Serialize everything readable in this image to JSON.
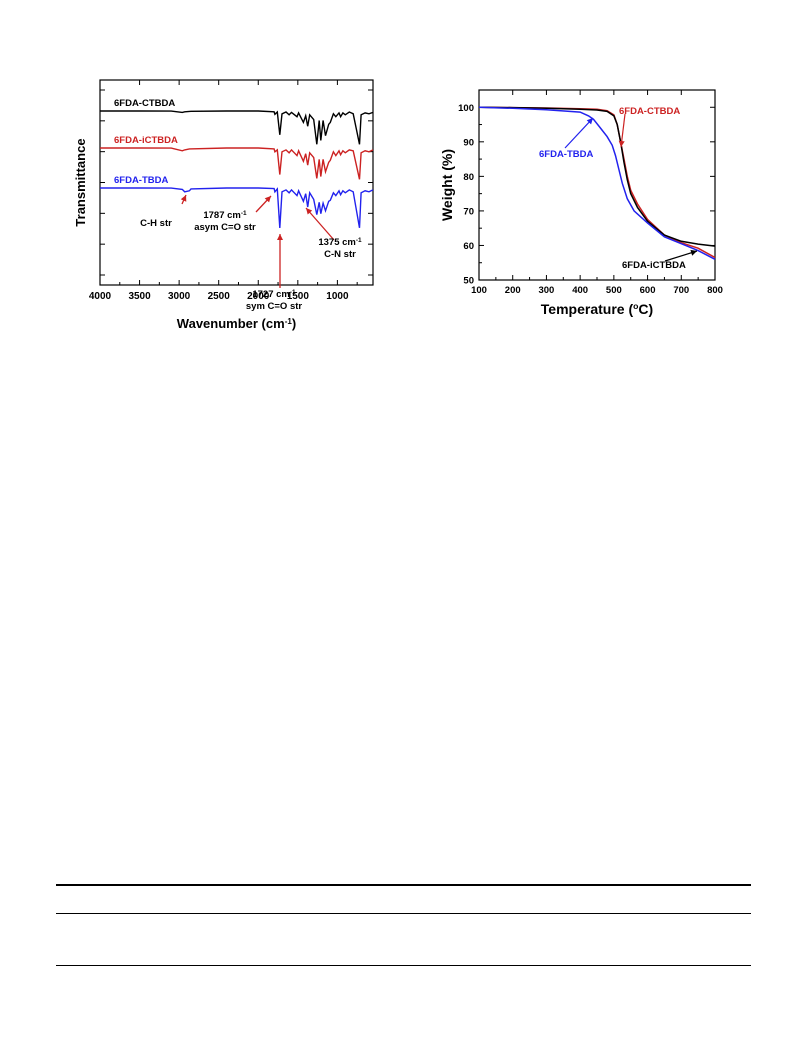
{
  "figures": [
    {
      "chart_data": {
        "type": "line",
        "xlabel": "Wavenumber (cm",
        "xlabel_sup": "-1",
        "xlabel_end": ")",
        "ylabel": "Transmittance",
        "xlim": [
          4000,
          550
        ],
        "x_reversed": true,
        "xticks": [
          4000,
          3500,
          3000,
          2500,
          2000,
          1500,
          1000
        ],
        "yticks_unlabeled": 7,
        "series": [
          {
            "name": "6FDA-CTBDA",
            "color": "#000000",
            "points": [
              [
                4000,
                0.0
              ],
              [
                3500,
                0.0
              ],
              [
                3100,
                0.1
              ],
              [
                2960,
                1.5
              ],
              [
                2930,
                0.8
              ],
              [
                2850,
                0.3
              ],
              [
                2400,
                0.0
              ],
              [
                2000,
                0.0
              ],
              [
                1800,
                0.8
              ],
              [
                1790,
                3.5
              ],
              [
                1760,
                1.0
              ],
              [
                1728,
                25
              ],
              [
                1700,
                3.0
              ],
              [
                1650,
                1.0
              ],
              [
                1610,
                4
              ],
              [
                1580,
                1.5
              ],
              [
                1510,
                6
              ],
              [
                1490,
                2
              ],
              [
                1430,
                12
              ],
              [
                1400,
                5
              ],
              [
                1375,
                16
              ],
              [
                1350,
                4
              ],
              [
                1300,
                9
              ],
              [
                1260,
                35
              ],
              [
                1230,
                10
              ],
              [
                1210,
                31
              ],
              [
                1180,
                10
              ],
              [
                1150,
                26
              ],
              [
                1110,
                14
              ],
              [
                1090,
                12
              ],
              [
                1050,
                3
              ],
              [
                1020,
                6
              ],
              [
                980,
                2
              ],
              [
                960,
                6
              ],
              [
                930,
                2
              ],
              [
                900,
                4
              ],
              [
                850,
                1
              ],
              [
                800,
                3
              ],
              [
                720,
                35
              ],
              [
                700,
                4
              ],
              [
                650,
                2
              ],
              [
                600,
                3
              ],
              [
                550,
                1.5
              ]
            ]
          },
          {
            "name": "6FDA-iCTBDA",
            "color": "#cc2222",
            "points": [
              [
                4000,
                0.0
              ],
              [
                3500,
                0.0
              ],
              [
                3100,
                0.1
              ],
              [
                2960,
                3
              ],
              [
                2930,
                2
              ],
              [
                2870,
                1
              ],
              [
                2400,
                0.0
              ],
              [
                2000,
                0.0
              ],
              [
                1800,
                1
              ],
              [
                1790,
                4
              ],
              [
                1760,
                2
              ],
              [
                1728,
                28
              ],
              [
                1700,
                4
              ],
              [
                1650,
                2
              ],
              [
                1610,
                5
              ],
              [
                1580,
                2
              ],
              [
                1510,
                8
              ],
              [
                1490,
                3
              ],
              [
                1430,
                14
              ],
              [
                1400,
                6
              ],
              [
                1375,
                18
              ],
              [
                1350,
                5
              ],
              [
                1300,
                10
              ],
              [
                1260,
                32
              ],
              [
                1230,
                12
              ],
              [
                1210,
                30
              ],
              [
                1180,
                12
              ],
              [
                1150,
                25
              ],
              [
                1110,
                15
              ],
              [
                1090,
                13
              ],
              [
                1050,
                4
              ],
              [
                1020,
                8
              ],
              [
                980,
                3
              ],
              [
                960,
                7
              ],
              [
                930,
                3
              ],
              [
                900,
                5
              ],
              [
                850,
                2
              ],
              [
                800,
                3
              ],
              [
                720,
                33
              ],
              [
                700,
                5
              ],
              [
                650,
                3
              ],
              [
                600,
                4
              ],
              [
                550,
                2
              ]
            ]
          },
          {
            "name": "6FDA-TBDA",
            "color": "#2222ee",
            "points": [
              [
                4000,
                0.0
              ],
              [
                3500,
                0.0
              ],
              [
                3100,
                0.1
              ],
              [
                2960,
                1.5
              ],
              [
                2930,
                4
              ],
              [
                2870,
                3
              ],
              [
                2850,
                1
              ],
              [
                2400,
                0.0
              ],
              [
                2000,
                0.0
              ],
              [
                1800,
                0.5
              ],
              [
                1790,
                4
              ],
              [
                1760,
                1
              ],
              [
                1728,
                42
              ],
              [
                1700,
                4
              ],
              [
                1650,
                2
              ],
              [
                1610,
                5
              ],
              [
                1580,
                2
              ],
              [
                1510,
                8
              ],
              [
                1490,
                3
              ],
              [
                1430,
                14
              ],
              [
                1400,
                6
              ],
              [
                1375,
                20
              ],
              [
                1350,
                5
              ],
              [
                1300,
                12
              ],
              [
                1260,
                28
              ],
              [
                1230,
                15
              ],
              [
                1210,
                27
              ],
              [
                1180,
                16
              ],
              [
                1150,
                24
              ],
              [
                1110,
                14
              ],
              [
                1090,
                13
              ],
              [
                1050,
                5
              ],
              [
                1020,
                8
              ],
              [
                980,
                3
              ],
              [
                960,
                7
              ],
              [
                930,
                3
              ],
              [
                900,
                5
              ],
              [
                850,
                2
              ],
              [
                800,
                4
              ],
              [
                720,
                42
              ],
              [
                700,
                5
              ],
              [
                650,
                3
              ],
              [
                600,
                4
              ],
              [
                550,
                2
              ]
            ]
          }
        ],
        "annotations": [
          {
            "line1": "C-H str",
            "line1_sup": "",
            "line2": "",
            "target": 2930
          },
          {
            "line1": "1787 cm",
            "line1_sup": "-1",
            "line2": "asym C=O str",
            "target": 1787
          },
          {
            "line1": "1727 cm",
            "line1_sup": "-1",
            "line2": "sym C=O str",
            "target": 1727
          },
          {
            "line1": "1375 cm",
            "line1_sup": "-1",
            "line2": "C-N str",
            "target": 1375
          }
        ]
      }
    },
    {
      "chart_data": {
        "type": "line",
        "xlabel": "Temperature (",
        "xlabel_sup": "o",
        "xlabel_end": "C)",
        "ylabel": "Weight (%)",
        "xlim": [
          100,
          800
        ],
        "ylim": [
          50,
          105
        ],
        "xticks": [
          100,
          200,
          300,
          400,
          500,
          600,
          700,
          800
        ],
        "yticks": [
          50,
          60,
          70,
          80,
          90,
          100
        ],
        "series": [
          {
            "name": "6FDA-CTBDA",
            "color": "#cc2222",
            "points": [
              [
                100,
                100
              ],
              [
                200,
                99.9
              ],
              [
                300,
                99.8
              ],
              [
                400,
                99.6
              ],
              [
                450,
                99.4
              ],
              [
                480,
                99.0
              ],
              [
                500,
                97.8
              ],
              [
                510,
                95
              ],
              [
                520,
                90
              ],
              [
                530,
                85
              ],
              [
                540,
                80
              ],
              [
                550,
                76
              ],
              [
                570,
                72
              ],
              [
                600,
                67.5
              ],
              [
                650,
                63
              ],
              [
                700,
                60.8
              ],
              [
                750,
                59.2
              ],
              [
                800,
                56.5
              ]
            ]
          },
          {
            "name": "6FDA-iCTBDA",
            "color": "#000000",
            "points": [
              [
                100,
                100
              ],
              [
                200,
                99.9
              ],
              [
                300,
                99.7
              ],
              [
                400,
                99.4
              ],
              [
                450,
                99.2
              ],
              [
                480,
                98.8
              ],
              [
                500,
                97.5
              ],
              [
                510,
                95
              ],
              [
                520,
                90
              ],
              [
                530,
                84
              ],
              [
                540,
                79
              ],
              [
                550,
                75
              ],
              [
                570,
                71
              ],
              [
                600,
                67
              ],
              [
                650,
                63
              ],
              [
                700,
                61.2
              ],
              [
                750,
                60.4
              ],
              [
                800,
                59.8
              ]
            ]
          },
          {
            "name": "6FDA-TBDA",
            "color": "#2222ee",
            "points": [
              [
                100,
                100
              ],
              [
                200,
                99.7
              ],
              [
                300,
                99.3
              ],
              [
                400,
                98.6
              ],
              [
                425,
                97.5
              ],
              [
                440,
                96.5
              ],
              [
                460,
                94
              ],
              [
                480,
                91.5
              ],
              [
                495,
                89
              ],
              [
                505,
                86
              ],
              [
                515,
                82
              ],
              [
                525,
                78
              ],
              [
                540,
                73.5
              ],
              [
                560,
                70
              ],
              [
                600,
                66.5
              ],
              [
                650,
                62.5
              ],
              [
                700,
                60.5
              ],
              [
                750,
                58.5
              ],
              [
                800,
                56
              ]
            ]
          }
        ],
        "labels": [
          {
            "text": "6FDA-CTBDA",
            "series": "6FDA-CTBDA"
          },
          {
            "text": "6FDA-TBDA",
            "series": "6FDA-TBDA"
          },
          {
            "text": "6FDA-iCTBDA",
            "series": "6FDA-iCTBDA"
          }
        ]
      }
    }
  ]
}
